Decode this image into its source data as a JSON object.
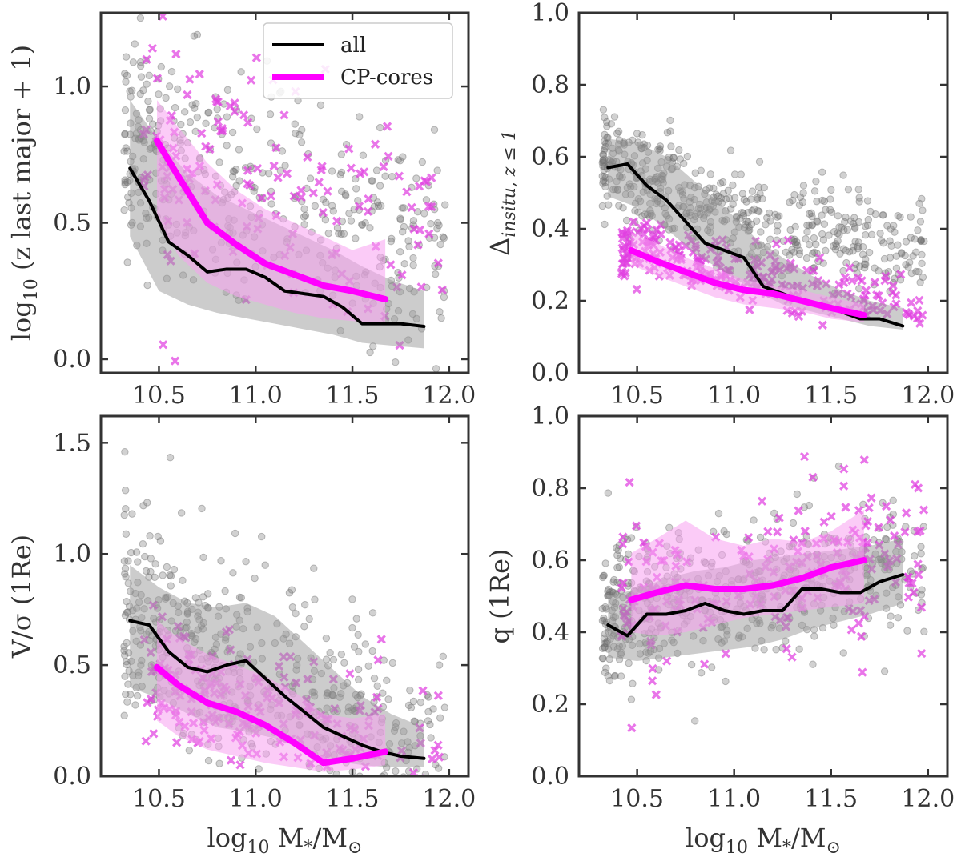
{
  "colors": {
    "all": "#000000",
    "all_band": "#9a9a9a",
    "all_points": "#707070",
    "cp": "#ff00ff",
    "cp_band": "#f7a0f0",
    "cp_points": "#e040e0"
  },
  "legend": {
    "all": "all",
    "cp": "CP-cores"
  },
  "chart_data": [
    {
      "id": "zlast",
      "type": "line",
      "title": "",
      "xlabel": "",
      "ylabel_html": "log<tspan font-size='22' dy='8'>10</tspan><tspan dy='-8'> (z last major + 1)</tspan>",
      "ylabel_text": "log10 (z last major + 1)",
      "xlim": [
        10.2,
        12.1
      ],
      "ylim": [
        -0.05,
        1.27
      ],
      "xticks": [
        10.5,
        11.0,
        11.5,
        12.0
      ],
      "xtick_labels": [
        "10.5",
        "11.0",
        "11.5",
        "12.0"
      ],
      "yticks": [
        0.0,
        0.5,
        1.0
      ],
      "ytick_labels": [
        "0.0",
        "0.5",
        "1.0"
      ],
      "series": [
        {
          "name": "all",
          "x": [
            10.35,
            10.45,
            10.55,
            10.65,
            10.75,
            10.85,
            10.95,
            11.05,
            11.15,
            11.25,
            11.35,
            11.45,
            11.55,
            11.65,
            11.75,
            11.87
          ],
          "y": [
            0.7,
            0.58,
            0.43,
            0.38,
            0.32,
            0.33,
            0.33,
            0.3,
            0.25,
            0.24,
            0.23,
            0.19,
            0.13,
            0.13,
            0.13,
            0.12
          ]
        },
        {
          "name": "CP-cores",
          "x": [
            10.49,
            10.6,
            10.75,
            10.9,
            11.05,
            11.2,
            11.35,
            11.5,
            11.67
          ],
          "y": [
            0.8,
            0.67,
            0.5,
            0.42,
            0.35,
            0.31,
            0.27,
            0.25,
            0.22
          ]
        }
      ],
      "bands": [
        {
          "name": "all",
          "x": [
            10.35,
            10.5,
            10.65,
            10.8,
            10.95,
            11.1,
            11.25,
            11.4,
            11.55,
            11.7,
            11.87
          ],
          "lo": [
            0.45,
            0.25,
            0.2,
            0.17,
            0.15,
            0.13,
            0.11,
            0.09,
            0.06,
            0.05,
            0.04
          ],
          "hi": [
            0.95,
            0.8,
            0.68,
            0.6,
            0.55,
            0.5,
            0.45,
            0.4,
            0.34,
            0.29,
            0.25
          ]
        },
        {
          "name": "CP-cores",
          "x": [
            10.49,
            10.6,
            10.75,
            10.9,
            11.05,
            11.2,
            11.35,
            11.5,
            11.67
          ],
          "lo": [
            0.52,
            0.38,
            0.28,
            0.23,
            0.2,
            0.17,
            0.15,
            0.14,
            0.13
          ],
          "hi": [
            0.95,
            0.85,
            0.72,
            0.62,
            0.55,
            0.5,
            0.45,
            0.4,
            0.44
          ]
        }
      ],
      "scatter": {
        "all": {
          "x_range": [
            10.32,
            11.98
          ],
          "center": [
            0.8,
            -0.3
          ],
          "curve": 0.03,
          "sigma": 0.21,
          "n": 420
        },
        "cp": {
          "x_range": [
            10.42,
            11.98
          ],
          "center": [
            0.85,
            -0.3
          ],
          "curve": 0.03,
          "sigma": 0.23,
          "n": 140
        }
      },
      "legend_position": "top-right"
    },
    {
      "id": "insitu",
      "type": "line",
      "title": "",
      "xlabel": "",
      "ylabel_html": "Δ<tspan font-size='22' font-style='italic' dy='8'>insitu, z ≤ 1</tspan>",
      "ylabel_text": "Δinsitu, z≤1",
      "xlim": [
        10.2,
        12.1
      ],
      "ylim": [
        0.0,
        1.0
      ],
      "xticks": [
        10.5,
        11.0,
        11.5,
        12.0
      ],
      "xtick_labels": [
        "10.5",
        "11.0",
        "11.5",
        "12.0"
      ],
      "yticks": [
        0.0,
        0.2,
        0.4,
        0.6,
        0.8,
        1.0
      ],
      "ytick_labels": [
        "0.0",
        "0.2",
        "0.4",
        "0.6",
        "0.8",
        "1.0"
      ],
      "series": [
        {
          "name": "all",
          "x": [
            10.35,
            10.45,
            10.55,
            10.65,
            10.75,
            10.85,
            10.95,
            11.05,
            11.15,
            11.25,
            11.35,
            11.45,
            11.55,
            11.65,
            11.75,
            11.87
          ],
          "y": [
            0.57,
            0.58,
            0.52,
            0.48,
            0.42,
            0.36,
            0.34,
            0.32,
            0.24,
            0.22,
            0.2,
            0.19,
            0.17,
            0.15,
            0.15,
            0.13
          ]
        },
        {
          "name": "CP-cores",
          "x": [
            10.47,
            10.6,
            10.75,
            10.9,
            11.05,
            11.2,
            11.35,
            11.5,
            11.67
          ],
          "y": [
            0.34,
            0.31,
            0.28,
            0.25,
            0.23,
            0.22,
            0.2,
            0.18,
            0.16
          ]
        }
      ],
      "bands": [
        {
          "name": "all",
          "x": [
            10.35,
            10.5,
            10.65,
            10.8,
            10.95,
            11.1,
            11.25,
            11.4,
            11.55,
            11.7,
            11.87
          ],
          "lo": [
            0.49,
            0.46,
            0.4,
            0.33,
            0.28,
            0.23,
            0.19,
            0.17,
            0.15,
            0.13,
            0.12
          ],
          "hi": [
            0.65,
            0.64,
            0.6,
            0.53,
            0.46,
            0.38,
            0.32,
            0.27,
            0.23,
            0.2,
            0.18
          ]
        },
        {
          "name": "CP-cores",
          "x": [
            10.47,
            10.6,
            10.75,
            10.9,
            11.05,
            11.2,
            11.35,
            11.5,
            11.67
          ],
          "lo": [
            0.3,
            0.27,
            0.24,
            0.21,
            0.19,
            0.18,
            0.17,
            0.15,
            0.14
          ],
          "hi": [
            0.39,
            0.36,
            0.32,
            0.29,
            0.26,
            0.24,
            0.23,
            0.21,
            0.19
          ]
        }
      ],
      "scatter": {
        "all": {
          "x_range": [
            10.32,
            11.98
          ],
          "center": [
            0.6,
            -0.28
          ],
          "curve": 0.08,
          "sigma": 0.07,
          "n": 520
        },
        "cp": {
          "x_range": [
            10.42,
            11.98
          ],
          "center": [
            0.35,
            -0.12
          ],
          "curve": 0.0,
          "sigma": 0.045,
          "n": 240
        }
      },
      "legend_position": "none"
    },
    {
      "id": "vsigma",
      "type": "line",
      "title": "",
      "xlabel_html": "log<tspan font-size='22' dy='8'>10</tspan><tspan dy='-8'> M</tspan><tspan font-size='22' dy='8'>*</tspan><tspan dy='-8'>/M</tspan><tspan font-size='22' dy='8'>⊙</tspan>",
      "xlabel_text": "log10 M*/M⊙",
      "ylabel_html": "V/σ (1Re)",
      "ylabel_text": "V/σ (1Re)",
      "xlim": [
        10.2,
        12.1
      ],
      "ylim": [
        0.0,
        1.62
      ],
      "xticks": [
        10.5,
        11.0,
        11.5,
        12.0
      ],
      "xtick_labels": [
        "10.5",
        "11.0",
        "11.5",
        "12.0"
      ],
      "yticks": [
        0.0,
        0.5,
        1.0,
        1.5
      ],
      "ytick_labels": [
        "0.0",
        "0.5",
        "1.0",
        "1.5"
      ],
      "series": [
        {
          "name": "all",
          "x": [
            10.35,
            10.45,
            10.55,
            10.65,
            10.75,
            10.85,
            10.95,
            11.05,
            11.15,
            11.25,
            11.35,
            11.45,
            11.55,
            11.65,
            11.75,
            11.87
          ],
          "y": [
            0.7,
            0.68,
            0.56,
            0.49,
            0.47,
            0.5,
            0.52,
            0.44,
            0.36,
            0.29,
            0.22,
            0.18,
            0.14,
            0.11,
            0.09,
            0.08
          ]
        },
        {
          "name": "CP-cores",
          "x": [
            10.49,
            10.6,
            10.75,
            10.9,
            11.05,
            11.2,
            11.35,
            11.5,
            11.67
          ],
          "y": [
            0.49,
            0.41,
            0.33,
            0.29,
            0.23,
            0.15,
            0.06,
            0.08,
            0.11
          ]
        }
      ],
      "bands": [
        {
          "name": "all",
          "x": [
            10.35,
            10.5,
            10.65,
            10.8,
            10.95,
            11.1,
            11.25,
            11.4,
            11.55,
            11.7,
            11.87
          ],
          "lo": [
            0.4,
            0.35,
            0.28,
            0.22,
            0.2,
            0.17,
            0.12,
            0.07,
            0.05,
            0.04,
            0.04
          ],
          "hi": [
            0.95,
            0.85,
            0.78,
            0.76,
            0.78,
            0.72,
            0.6,
            0.48,
            0.36,
            0.28,
            0.22
          ]
        },
        {
          "name": "CP-cores",
          "x": [
            10.49,
            10.6,
            10.75,
            10.9,
            11.05,
            11.2,
            11.35,
            11.5,
            11.67
          ],
          "lo": [
            0.25,
            0.18,
            0.12,
            0.09,
            0.06,
            0.04,
            0.02,
            0.03,
            0.05
          ],
          "hi": [
            0.7,
            0.62,
            0.55,
            0.5,
            0.45,
            0.38,
            0.28,
            0.26,
            0.28
          ]
        }
      ],
      "scatter": {
        "all": {
          "x_range": [
            10.32,
            11.98
          ],
          "center": [
            0.72,
            -0.4
          ],
          "curve": 0.0,
          "sigma": 0.26,
          "n": 520
        },
        "cp": {
          "x_range": [
            10.42,
            11.98
          ],
          "center": [
            0.45,
            -0.25
          ],
          "curve": 0.0,
          "sigma": 0.18,
          "n": 190
        }
      },
      "legend_position": "none"
    },
    {
      "id": "q",
      "type": "line",
      "title": "",
      "xlabel_html": "log<tspan font-size='22' dy='8'>10</tspan><tspan dy='-8'> M</tspan><tspan font-size='22' dy='8'>*</tspan><tspan dy='-8'>/M</tspan><tspan font-size='22' dy='8'>⊙</tspan>",
      "xlabel_text": "log10 M*/M⊙",
      "ylabel_html": "q (1Re)",
      "ylabel_text": "q (1Re)",
      "xlim": [
        10.2,
        12.1
      ],
      "ylim": [
        0.0,
        1.0
      ],
      "xticks": [
        10.5,
        11.0,
        11.5,
        12.0
      ],
      "xtick_labels": [
        "10.5",
        "11.0",
        "11.5",
        "12.0"
      ],
      "yticks": [
        0.0,
        0.2,
        0.4,
        0.6,
        0.8,
        1.0
      ],
      "ytick_labels": [
        "0.0",
        "0.2",
        "0.4",
        "0.6",
        "0.8",
        "1.0"
      ],
      "series": [
        {
          "name": "all",
          "x": [
            10.35,
            10.45,
            10.55,
            10.65,
            10.75,
            10.85,
            10.95,
            11.05,
            11.15,
            11.25,
            11.35,
            11.45,
            11.55,
            11.65,
            11.75,
            11.87
          ],
          "y": [
            0.42,
            0.39,
            0.45,
            0.45,
            0.46,
            0.48,
            0.46,
            0.45,
            0.46,
            0.46,
            0.52,
            0.52,
            0.51,
            0.51,
            0.54,
            0.56
          ]
        },
        {
          "name": "CP-cores",
          "x": [
            10.47,
            10.6,
            10.75,
            10.9,
            11.05,
            11.2,
            11.35,
            11.5,
            11.67
          ],
          "y": [
            0.49,
            0.51,
            0.53,
            0.52,
            0.52,
            0.53,
            0.55,
            0.58,
            0.6
          ]
        }
      ],
      "bands": [
        {
          "name": "all",
          "x": [
            10.35,
            10.5,
            10.65,
            10.8,
            10.95,
            11.1,
            11.25,
            11.4,
            11.55,
            11.7,
            11.87
          ],
          "lo": [
            0.33,
            0.32,
            0.33,
            0.34,
            0.35,
            0.36,
            0.38,
            0.41,
            0.43,
            0.45,
            0.48
          ],
          "hi": [
            0.5,
            0.52,
            0.55,
            0.57,
            0.58,
            0.6,
            0.61,
            0.62,
            0.63,
            0.64,
            0.66
          ]
        },
        {
          "name": "CP-cores",
          "x": [
            10.47,
            10.6,
            10.75,
            10.9,
            11.05,
            11.2,
            11.35,
            11.5,
            11.67
          ],
          "lo": [
            0.4,
            0.39,
            0.4,
            0.42,
            0.44,
            0.45,
            0.46,
            0.47,
            0.48
          ],
          "hi": [
            0.62,
            0.66,
            0.71,
            0.66,
            0.64,
            0.66,
            0.65,
            0.68,
            0.74
          ]
        }
      ],
      "scatter": {
        "all": {
          "x_range": [
            10.32,
            11.98
          ],
          "center": [
            0.44,
            0.1
          ],
          "curve": 0.0,
          "sigma": 0.1,
          "n": 520
        },
        "cp": {
          "x_range": [
            10.42,
            11.98
          ],
          "center": [
            0.48,
            0.1
          ],
          "curve": 0.0,
          "sigma": 0.12,
          "n": 190
        }
      },
      "legend_position": "none"
    }
  ]
}
